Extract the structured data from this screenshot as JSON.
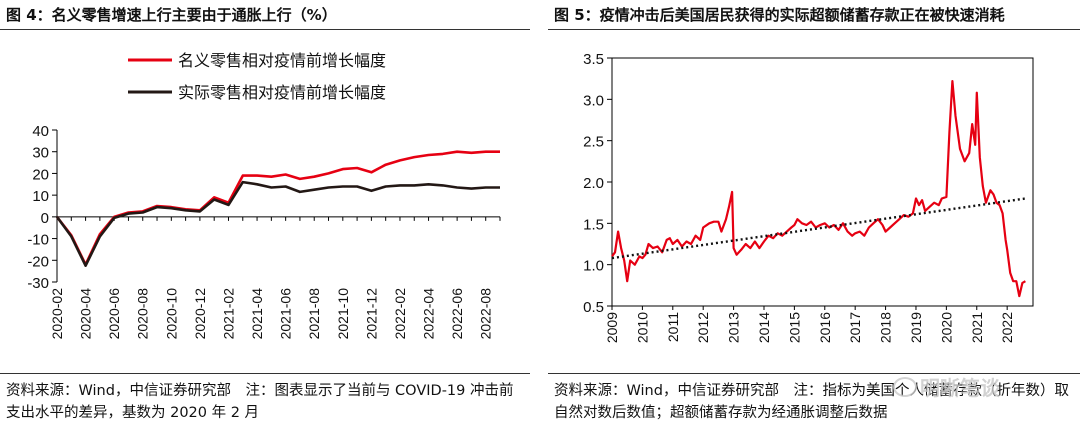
{
  "chart_data": [
    {
      "type": "line",
      "title": "图 4：名义零售增速上行主要由于通胀上行（%）",
      "source": "资料来源：Wind，中信证券研究部　注：图表显示了当前与 COVID-19 冲击前支出水平的差异，基数为 2020 年 2 月",
      "ylim": [
        -30,
        40
      ],
      "yticks": [
        40,
        30,
        20,
        10,
        0,
        -10,
        -20,
        -30
      ],
      "x": [
        "2020-02",
        "2020-03",
        "2020-04",
        "2020-05",
        "2020-06",
        "2020-07",
        "2020-08",
        "2020-09",
        "2020-10",
        "2020-11",
        "2020-12",
        "2021-01",
        "2021-02",
        "2021-03",
        "2021-04",
        "2021-05",
        "2021-06",
        "2021-07",
        "2021-08",
        "2021-09",
        "2021-10",
        "2021-11",
        "2021-12",
        "2022-01",
        "2022-02",
        "2022-03",
        "2022-04",
        "2022-05",
        "2022-06",
        "2022-07",
        "2022-08",
        "2022-09"
      ],
      "xtick_labels": [
        "2020-02",
        "2020-04",
        "2020-06",
        "2020-08",
        "2020-10",
        "2020-12",
        "2021-02",
        "2021-04",
        "2021-06",
        "2021-08",
        "2021-10",
        "2021-12",
        "2022-02",
        "2022-04",
        "2022-06",
        "2022-08"
      ],
      "series": [
        {
          "name": "名义零售相对疫情前增长幅度",
          "color": "#e60012",
          "values": [
            0,
            -8.5,
            -22,
            -8,
            0,
            2,
            2.5,
            5,
            4.5,
            3.5,
            3,
            9,
            6.5,
            19,
            19,
            18.5,
            19.5,
            17.5,
            18.5,
            20,
            22,
            22.5,
            20.5,
            24,
            26,
            27.5,
            28.5,
            29,
            30,
            29.5,
            30,
            30
          ]
        },
        {
          "name": "实际零售相对疫情前增长幅度",
          "color": "#231815",
          "values": [
            0,
            -9,
            -22.5,
            -9,
            -0.5,
            1.5,
            2,
            4.5,
            4,
            3,
            2.5,
            8,
            5.5,
            16,
            15,
            13.5,
            14,
            11.5,
            12.5,
            13.5,
            14,
            14,
            12,
            14,
            14.5,
            14.5,
            15,
            14.5,
            13.5,
            13,
            13.5,
            13.5
          ]
        }
      ]
    },
    {
      "type": "line",
      "title": "图 5：疫情冲击后美国居民获得的实际超额储蓄存款正在被快速消耗",
      "source": "资料来源：Wind，中信证券研究部　注：指标为美国个人储蓄存款（折年数）取自然对数后数值；超额储蓄存款为经通胀调整后数据",
      "ylim": [
        0.5,
        3.5
      ],
      "yticks": [
        "3.5",
        "3.0",
        "2.5",
        "2.0",
        "1.5",
        "1.0",
        "0.5"
      ],
      "xtick_labels": [
        "2009",
        "2010",
        "2011",
        "2012",
        "2013",
        "2014",
        "2015",
        "2016",
        "2017",
        "2018",
        "2019",
        "2020",
        "2021",
        "2022"
      ],
      "xlim": [
        2009,
        2022.85
      ],
      "series": [
        {
          "name": "超额储蓄存款",
          "color": "#e60012",
          "points": [
            [
              2009.0,
              1.1
            ],
            [
              2009.1,
              1.15
            ],
            [
              2009.2,
              1.4
            ],
            [
              2009.3,
              1.2
            ],
            [
              2009.4,
              1.05
            ],
            [
              2009.5,
              0.8
            ],
            [
              2009.6,
              1.05
            ],
            [
              2009.75,
              1.0
            ],
            [
              2009.9,
              1.1
            ],
            [
              2010.0,
              1.08
            ],
            [
              2010.1,
              1.12
            ],
            [
              2010.2,
              1.25
            ],
            [
              2010.35,
              1.2
            ],
            [
              2010.5,
              1.22
            ],
            [
              2010.65,
              1.15
            ],
            [
              2010.8,
              1.3
            ],
            [
              2010.9,
              1.32
            ],
            [
              2011.0,
              1.25
            ],
            [
              2011.15,
              1.3
            ],
            [
              2011.3,
              1.22
            ],
            [
              2011.45,
              1.28
            ],
            [
              2011.6,
              1.25
            ],
            [
              2011.75,
              1.35
            ],
            [
              2011.9,
              1.3
            ],
            [
              2012.0,
              1.45
            ],
            [
              2012.2,
              1.5
            ],
            [
              2012.35,
              1.52
            ],
            [
              2012.5,
              1.52
            ],
            [
              2012.6,
              1.4
            ],
            [
              2012.75,
              1.55
            ],
            [
              2012.85,
              1.7
            ],
            [
              2012.95,
              1.88
            ],
            [
              2013.0,
              1.2
            ],
            [
              2013.1,
              1.12
            ],
            [
              2013.25,
              1.18
            ],
            [
              2013.4,
              1.25
            ],
            [
              2013.55,
              1.2
            ],
            [
              2013.7,
              1.28
            ],
            [
              2013.85,
              1.2
            ],
            [
              2014.0,
              1.28
            ],
            [
              2014.15,
              1.35
            ],
            [
              2014.3,
              1.32
            ],
            [
              2014.45,
              1.38
            ],
            [
              2014.6,
              1.35
            ],
            [
              2014.75,
              1.4
            ],
            [
              2014.9,
              1.45
            ],
            [
              2015.0,
              1.48
            ],
            [
              2015.1,
              1.55
            ],
            [
              2015.25,
              1.5
            ],
            [
              2015.4,
              1.48
            ],
            [
              2015.55,
              1.52
            ],
            [
              2015.7,
              1.45
            ],
            [
              2015.85,
              1.48
            ],
            [
              2016.0,
              1.5
            ],
            [
              2016.15,
              1.45
            ],
            [
              2016.3,
              1.48
            ],
            [
              2016.45,
              1.42
            ],
            [
              2016.6,
              1.5
            ],
            [
              2016.75,
              1.4
            ],
            [
              2016.9,
              1.35
            ],
            [
              2017.0,
              1.38
            ],
            [
              2017.15,
              1.4
            ],
            [
              2017.3,
              1.35
            ],
            [
              2017.45,
              1.45
            ],
            [
              2017.6,
              1.5
            ],
            [
              2017.75,
              1.55
            ],
            [
              2017.9,
              1.48
            ],
            [
              2018.0,
              1.4
            ],
            [
              2018.15,
              1.45
            ],
            [
              2018.3,
              1.5
            ],
            [
              2018.45,
              1.55
            ],
            [
              2018.6,
              1.6
            ],
            [
              2018.75,
              1.58
            ],
            [
              2018.9,
              1.62
            ],
            [
              2019.0,
              1.8
            ],
            [
              2019.1,
              1.72
            ],
            [
              2019.2,
              1.78
            ],
            [
              2019.3,
              1.65
            ],
            [
              2019.45,
              1.7
            ],
            [
              2019.6,
              1.75
            ],
            [
              2019.75,
              1.72
            ],
            [
              2019.85,
              1.8
            ],
            [
              2020.0,
              1.82
            ],
            [
              2020.1,
              2.6
            ],
            [
              2020.2,
              3.22
            ],
            [
              2020.3,
              2.8
            ],
            [
              2020.45,
              2.4
            ],
            [
              2020.6,
              2.25
            ],
            [
              2020.75,
              2.35
            ],
            [
              2020.85,
              2.7
            ],
            [
              2020.95,
              2.45
            ],
            [
              2021.0,
              3.08
            ],
            [
              2021.1,
              2.3
            ],
            [
              2021.2,
              1.95
            ],
            [
              2021.3,
              1.75
            ],
            [
              2021.45,
              1.9
            ],
            [
              2021.55,
              1.85
            ],
            [
              2021.65,
              1.75
            ],
            [
              2021.75,
              1.72
            ],
            [
              2021.85,
              1.62
            ],
            [
              2021.95,
              1.3
            ],
            [
              2022.0,
              1.18
            ],
            [
              2022.1,
              0.9
            ],
            [
              2022.2,
              0.8
            ],
            [
              2022.3,
              0.8
            ],
            [
              2022.4,
              0.62
            ],
            [
              2022.5,
              0.78
            ],
            [
              2022.6,
              0.8
            ]
          ]
        },
        {
          "name": "趋势线",
          "color": "#111111",
          "style": "dotted",
          "points": [
            [
              2009.0,
              1.08
            ],
            [
              2022.6,
              1.8
            ]
          ]
        }
      ]
    }
  ],
  "watermark": "明晰笔谈"
}
